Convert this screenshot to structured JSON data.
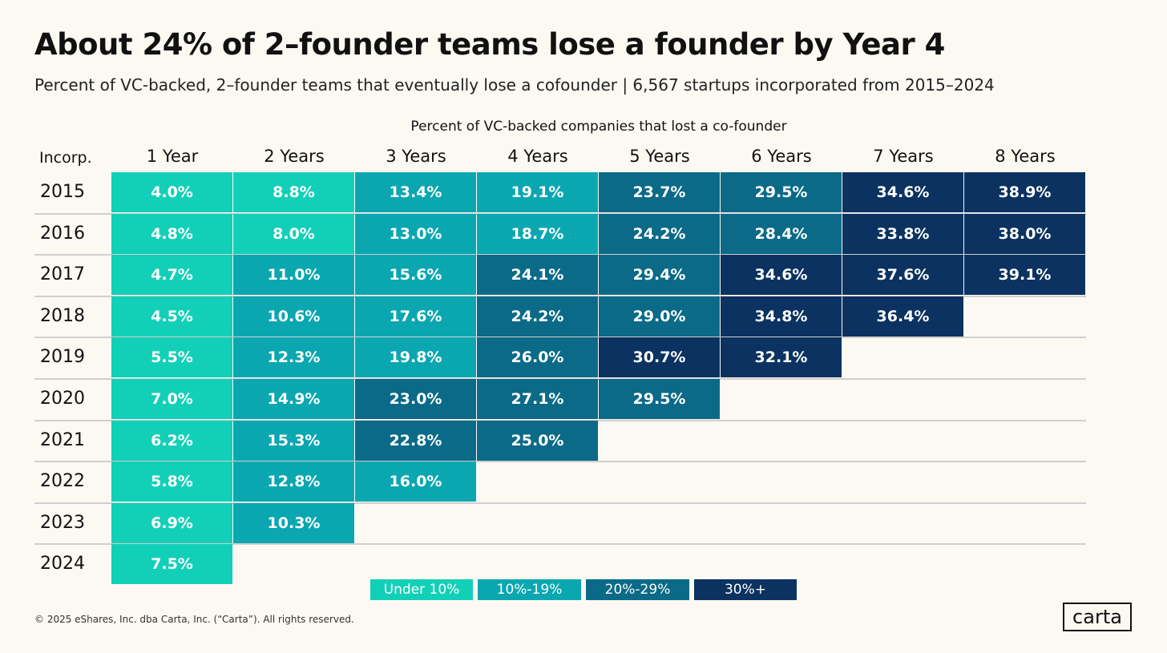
{
  "chart_data": {
    "type": "heatmap",
    "title": "About 24% of 2–founder teams lose a founder by Year 4",
    "subtitle": "Percent of VC-backed, 2–founder teams that eventually lose a cofounder | 6,567 startups incorporated from 2015–2024",
    "column_title": "Percent of VC-backed companies that lost a co-founder",
    "row_header": "Incorp.",
    "columns": [
      "1 Year",
      "2 Years",
      "3 Years",
      "4 Years",
      "5 Years",
      "6 Years",
      "7 Years",
      "8 Years"
    ],
    "rows": [
      "2015",
      "2016",
      "2017",
      "2018",
      "2019",
      "2020",
      "2021",
      "2022",
      "2023",
      "2024"
    ],
    "values": [
      [
        4.0,
        8.8,
        13.4,
        19.1,
        23.7,
        29.5,
        34.6,
        38.9
      ],
      [
        4.8,
        8.0,
        13.0,
        18.7,
        24.2,
        28.4,
        33.8,
        38.0
      ],
      [
        4.7,
        11.0,
        15.6,
        24.1,
        29.4,
        34.6,
        37.6,
        39.1
      ],
      [
        4.5,
        10.6,
        17.6,
        24.2,
        29.0,
        34.8,
        36.4
      ],
      [
        5.5,
        12.3,
        19.8,
        26.0,
        30.7,
        32.1
      ],
      [
        7.0,
        14.9,
        23.0,
        27.1,
        29.5
      ],
      [
        6.2,
        15.3,
        22.8,
        25.0
      ],
      [
        5.8,
        12.8,
        16.0
      ],
      [
        6.9,
        10.3
      ],
      [
        7.5
      ]
    ],
    "labels": [
      [
        "4.0%",
        "8.8%",
        "13.4%",
        "19.1%",
        "23.7%",
        "29.5%",
        "34.6%",
        "38.9%"
      ],
      [
        "4.8%",
        "8.0%",
        "13.0%",
        "18.7%",
        "24.2%",
        "28.4%",
        "33.8%",
        "38.0%"
      ],
      [
        "4.7%",
        "11.0%",
        "15.6%",
        "24.1%",
        "29.4%",
        "34.6%",
        "37.6%",
        "39.1%"
      ],
      [
        "4.5%",
        "10.6%",
        "17.6%",
        "24.2%",
        "29.0%",
        "34.8%",
        "36.4%"
      ],
      [
        "5.5%",
        "12.3%",
        "19.8%",
        "26.0%",
        "30.7%",
        "32.1%"
      ],
      [
        "7.0%",
        "14.9%",
        "23.0%",
        "27.1%",
        "29.5%"
      ],
      [
        "6.2%",
        "15.3%",
        "22.8%",
        "25.0%"
      ],
      [
        "5.8%",
        "12.8%",
        "16.0%"
      ],
      [
        "6.9%",
        "10.3%"
      ],
      [
        "7.5%"
      ]
    ],
    "legend": [
      {
        "label": "Under 10%",
        "min": 0,
        "max": 10,
        "color": "#12d0b7"
      },
      {
        "label": "10%-19%",
        "min": 10,
        "max": 20,
        "color": "#0aa7b1"
      },
      {
        "label": "20%-29%",
        "min": 20,
        "max": 30,
        "color": "#0b6a87"
      },
      {
        "label": "30%+",
        "min": 30,
        "max": 1000,
        "color": "#0b3260"
      }
    ],
    "legend_placement": "bottom"
  },
  "footer": "© 2025 eShares, Inc. dba Carta, Inc. (“Carta”). All rights reserved.",
  "logo": "carta"
}
